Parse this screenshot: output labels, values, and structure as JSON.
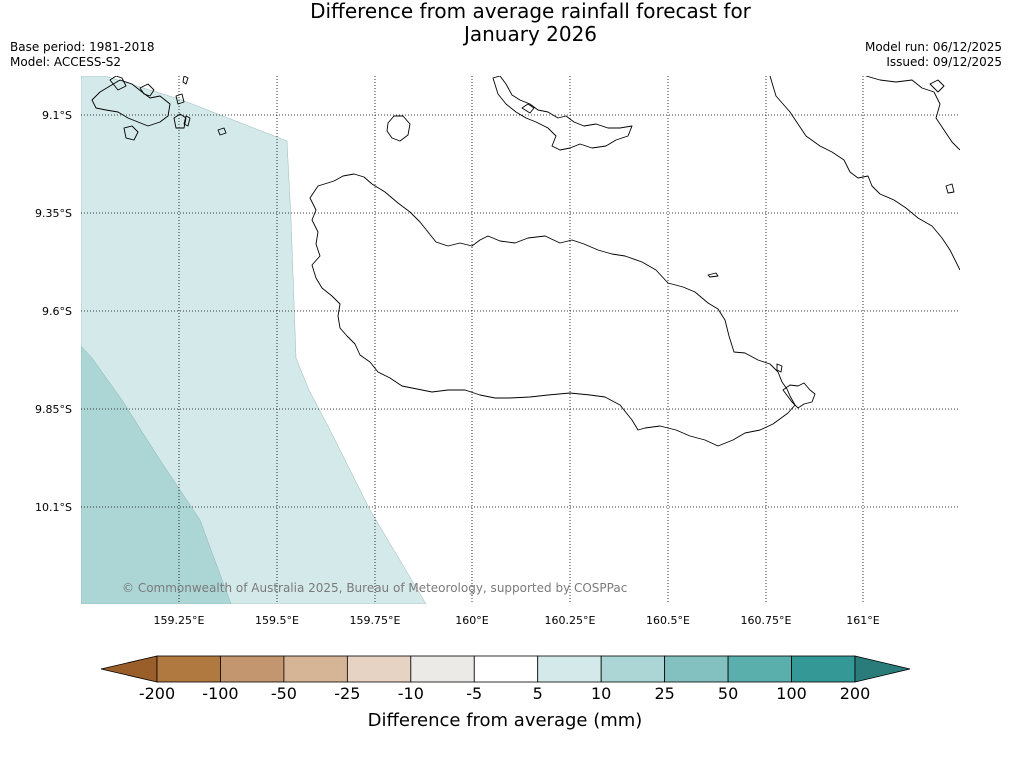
{
  "header": {
    "title_line1": "Difference from average rainfall forecast for",
    "title_line2": "January 2026",
    "base_period": "Base period: 1981-2018",
    "model": "Model: ACCESS-S2",
    "model_run": "Model run: 06/12/2025",
    "issued": "Issued: 09/12/2025"
  },
  "map": {
    "lat_labels": [
      "9.1°S",
      "9.35°S",
      "9.6°S",
      "9.85°S",
      "10.1°S"
    ],
    "lon_labels": [
      "159.25°E",
      "159.5°E",
      "159.75°E",
      "160°E",
      "160.25°E",
      "160.5°E",
      "160.75°E",
      "161°E"
    ],
    "copyright": "© Commonwealth of Australia 2025, Bureau of Meteorology, supported by COSPPac",
    "shading": [
      {
        "category": "5 to 10",
        "color": "#d4e9e9"
      },
      {
        "category": "10 to 25",
        "color": "#acd6d6"
      }
    ]
  },
  "colorbar": {
    "title": "Difference from average (mm)",
    "ticks": [
      "-200",
      "-100",
      "-50",
      "-25",
      "-10",
      "-5",
      "5",
      "10",
      "25",
      "50",
      "100",
      "200"
    ],
    "colors": [
      "#9a5e2b",
      "#b07940",
      "#c49670",
      "#d6b596",
      "#e6d3c4",
      "#ebeae6",
      "#ffffff",
      "#d4e9e9",
      "#acd6d6",
      "#82c1c0",
      "#5aaeac",
      "#339896",
      "#2a7c7a"
    ]
  }
}
